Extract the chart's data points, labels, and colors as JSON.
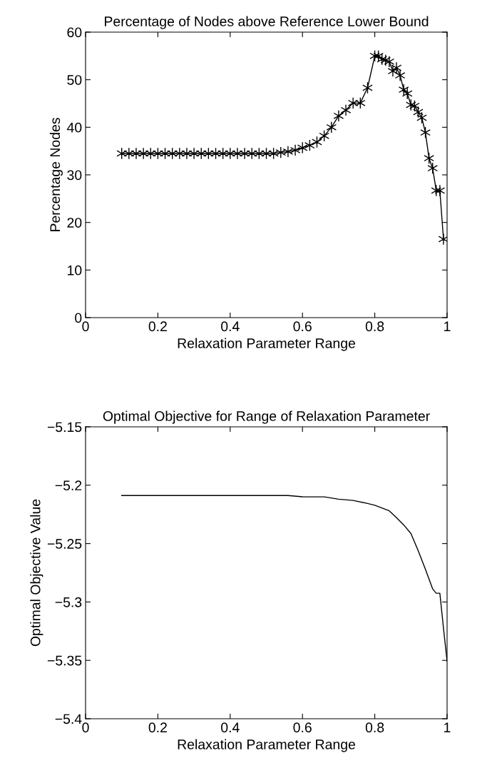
{
  "chart_data": [
    {
      "type": "line",
      "title": "Percentage of Nodes above Reference Lower Bound",
      "xlabel": "Relaxation Parameter Range",
      "ylabel": "Percentage Nodes",
      "marker": "cross",
      "line_style": "solid",
      "color": "#000000",
      "grid": false,
      "legend": false,
      "x": [
        0.1,
        0.12,
        0.14,
        0.16,
        0.18,
        0.2,
        0.22,
        0.24,
        0.26,
        0.28,
        0.3,
        0.32,
        0.34,
        0.36,
        0.38,
        0.4,
        0.42,
        0.44,
        0.46,
        0.48,
        0.5,
        0.52,
        0.54,
        0.56,
        0.58,
        0.6,
        0.62,
        0.64,
        0.66,
        0.68,
        0.7,
        0.72,
        0.74,
        0.76,
        0.78,
        0.8,
        0.81,
        0.82,
        0.83,
        0.84,
        0.85,
        0.86,
        0.87,
        0.88,
        0.89,
        0.9,
        0.91,
        0.92,
        0.93,
        0.94,
        0.95,
        0.96,
        0.97,
        0.98,
        0.99
      ],
      "values": [
        34.5,
        34.5,
        34.5,
        34.5,
        34.5,
        34.5,
        34.5,
        34.5,
        34.5,
        34.5,
        34.5,
        34.5,
        34.5,
        34.5,
        34.5,
        34.5,
        34.5,
        34.5,
        34.5,
        34.5,
        34.5,
        34.5,
        34.7,
        34.9,
        35.2,
        35.7,
        36.2,
        36.9,
        38.2,
        40.0,
        42.4,
        43.6,
        45.1,
        45.1,
        48.3,
        55.0,
        55.0,
        54.3,
        54.1,
        53.8,
        51.8,
        52.5,
        50.9,
        47.9,
        47.1,
        44.7,
        44.5,
        43.2,
        42.0,
        38.9,
        33.5,
        31.4,
        26.7,
        26.7,
        16.5
      ],
      "xlim": [
        0,
        1
      ],
      "xticks": [
        0,
        0.2,
        0.4,
        0.6,
        0.8,
        1
      ],
      "ylim": [
        0,
        60
      ],
      "yticks": [
        0,
        10,
        20,
        30,
        40,
        50,
        60
      ]
    },
    {
      "type": "line",
      "title": "Optimal Objective for Range of Relaxation Parameter",
      "xlabel": "Relaxation Parameter Range",
      "ylabel": "Optimal Objective Value",
      "line_style": "solid",
      "color": "#000000",
      "grid": false,
      "legend": false,
      "x": [
        0.1,
        0.56,
        0.6,
        0.66,
        0.7,
        0.74,
        0.78,
        0.8,
        0.84,
        0.86,
        0.88,
        0.9,
        0.92,
        0.94,
        0.96,
        0.97,
        0.98,
        0.99,
        1.0
      ],
      "values": [
        -5.2088,
        -5.2088,
        -5.2099,
        -5.21,
        -5.212,
        -5.213,
        -5.2156,
        -5.2172,
        -5.2219,
        -5.2278,
        -5.234,
        -5.2414,
        -5.256,
        -5.272,
        -5.2888,
        -5.2925,
        -5.2925,
        -5.3224,
        -5.3508
      ],
      "xlim": [
        0,
        1
      ],
      "xticks": [
        0,
        0.2,
        0.4,
        0.6,
        0.8,
        1
      ],
      "ylim": [
        -5.4,
        -5.15
      ],
      "yticks": [
        {
          "value": -5.4,
          "label": "−5.4"
        },
        {
          "value": -5.35,
          "label": "−5.35"
        },
        {
          "value": -5.3,
          "label": "−5.3"
        },
        {
          "value": -5.25,
          "label": "−5.25"
        },
        {
          "value": -5.2,
          "label": "−5.2"
        },
        {
          "value": -5.15,
          "label": "−5.15"
        }
      ]
    }
  ]
}
